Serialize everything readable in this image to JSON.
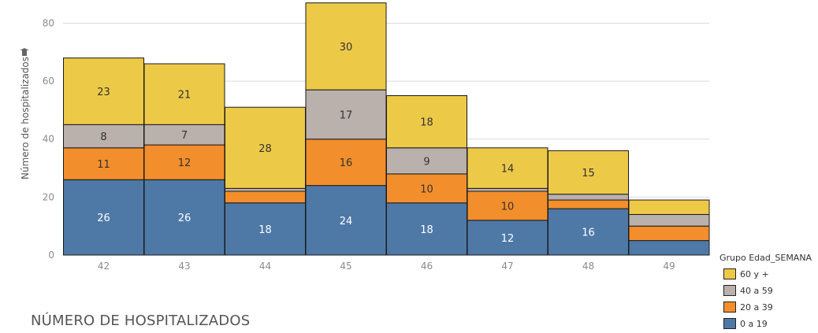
{
  "chart_data": {
    "type": "bar",
    "stacked": true,
    "title": "NÚMERO DE HOSPITALIZADOS",
    "xlabel": "",
    "ylabel": "Número de hospitalizados",
    "ylim": [
      0,
      88
    ],
    "yticks": [
      0,
      20,
      40,
      60,
      80
    ],
    "grid": true,
    "legend_title": "Grupo Edad_SEMANA",
    "legend_position": "bottom-right",
    "categories": [
      "42",
      "43",
      "44",
      "45",
      "46",
      "47",
      "48",
      "49"
    ],
    "series": [
      {
        "name": "0 a 19",
        "color": "#4e79a7",
        "values": [
          26,
          26,
          18,
          24,
          18,
          12,
          16,
          5
        ],
        "labels": [
          "26",
          "26",
          "18",
          "24",
          "18",
          "12",
          "16",
          ""
        ]
      },
      {
        "name": "20 a 39",
        "color": "#f28e2b",
        "values": [
          11,
          12,
          4,
          16,
          10,
          10,
          3,
          5
        ],
        "labels": [
          "11",
          "12",
          "",
          "16",
          "10",
          "10",
          "",
          ""
        ]
      },
      {
        "name": "40 a 59",
        "color": "#bab0ac",
        "values": [
          8,
          7,
          1,
          17,
          9,
          1,
          2,
          4
        ],
        "labels": [
          "8",
          "7",
          "",
          "17",
          "9",
          "",
          "",
          ""
        ]
      },
      {
        "name": "60 y +",
        "color": "#edc948",
        "values": [
          23,
          21,
          28,
          30,
          18,
          14,
          15,
          5
        ],
        "labels": [
          "23",
          "21",
          "28",
          "30",
          "18",
          "14",
          "15",
          ""
        ]
      }
    ]
  }
}
